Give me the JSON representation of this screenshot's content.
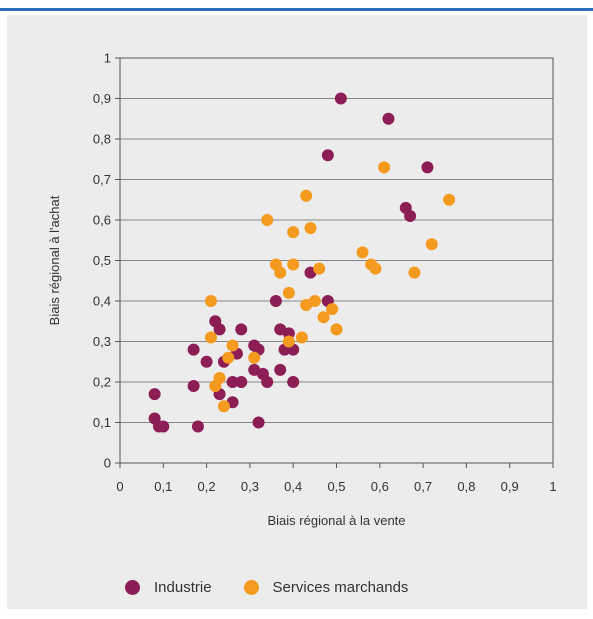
{
  "colors": {
    "accent_bar": "#2a6ebb",
    "panel_background": "#ececec",
    "industrie": "#8c1d55",
    "services": "#f39a1f"
  },
  "legend": {
    "industrie": "Industrie",
    "services": "Services marchands"
  },
  "chart_data": {
    "type": "scatter",
    "title": "",
    "xlabel": "Biais régional à la vente",
    "ylabel": "Biais régional à l'achat",
    "xlim": [
      0,
      1
    ],
    "ylim": [
      0,
      1
    ],
    "x_ticks": [
      "0",
      "0,1",
      "0,2",
      "0,3",
      "0,4",
      "0,5",
      "0,6",
      "0,7",
      "0,8",
      "0,9",
      "1"
    ],
    "y_ticks": [
      "0",
      "0,1",
      "0,2",
      "0,3",
      "0,4",
      "0,5",
      "0,6",
      "0,7",
      "0,8",
      "0,9",
      "1"
    ],
    "grid": "horizontal",
    "legend_position": "bottom",
    "series": [
      {
        "name": "Industrie",
        "color": "#8c1d55",
        "points": [
          [
            0.08,
            0.17
          ],
          [
            0.08,
            0.11
          ],
          [
            0.09,
            0.09
          ],
          [
            0.1,
            0.09
          ],
          [
            0.17,
            0.28
          ],
          [
            0.17,
            0.19
          ],
          [
            0.18,
            0.09
          ],
          [
            0.2,
            0.25
          ],
          [
            0.22,
            0.35
          ],
          [
            0.23,
            0.33
          ],
          [
            0.23,
            0.17
          ],
          [
            0.24,
            0.25
          ],
          [
            0.26,
            0.2
          ],
          [
            0.26,
            0.15
          ],
          [
            0.27,
            0.27
          ],
          [
            0.28,
            0.33
          ],
          [
            0.28,
            0.2
          ],
          [
            0.31,
            0.29
          ],
          [
            0.31,
            0.23
          ],
          [
            0.32,
            0.28
          ],
          [
            0.32,
            0.1
          ],
          [
            0.33,
            0.22
          ],
          [
            0.34,
            0.2
          ],
          [
            0.36,
            0.4
          ],
          [
            0.37,
            0.33
          ],
          [
            0.37,
            0.23
          ],
          [
            0.38,
            0.28
          ],
          [
            0.39,
            0.32
          ],
          [
            0.4,
            0.28
          ],
          [
            0.4,
            0.2
          ],
          [
            0.44,
            0.47
          ],
          [
            0.48,
            0.76
          ],
          [
            0.48,
            0.4
          ],
          [
            0.51,
            0.9
          ],
          [
            0.62,
            0.85
          ],
          [
            0.66,
            0.63
          ],
          [
            0.67,
            0.61
          ],
          [
            0.71,
            0.73
          ]
        ]
      },
      {
        "name": "Services marchands",
        "color": "#f39a1f",
        "points": [
          [
            0.21,
            0.4
          ],
          [
            0.21,
            0.31
          ],
          [
            0.22,
            0.19
          ],
          [
            0.23,
            0.21
          ],
          [
            0.24,
            0.14
          ],
          [
            0.25,
            0.26
          ],
          [
            0.26,
            0.29
          ],
          [
            0.31,
            0.26
          ],
          [
            0.34,
            0.6
          ],
          [
            0.36,
            0.49
          ],
          [
            0.37,
            0.47
          ],
          [
            0.39,
            0.42
          ],
          [
            0.39,
            0.3
          ],
          [
            0.4,
            0.57
          ],
          [
            0.4,
            0.49
          ],
          [
            0.42,
            0.31
          ],
          [
            0.43,
            0.66
          ],
          [
            0.43,
            0.39
          ],
          [
            0.44,
            0.58
          ],
          [
            0.45,
            0.4
          ],
          [
            0.46,
            0.48
          ],
          [
            0.47,
            0.36
          ],
          [
            0.49,
            0.38
          ],
          [
            0.5,
            0.33
          ],
          [
            0.56,
            0.52
          ],
          [
            0.58,
            0.49
          ],
          [
            0.59,
            0.48
          ],
          [
            0.61,
            0.73
          ],
          [
            0.68,
            0.47
          ],
          [
            0.72,
            0.54
          ],
          [
            0.76,
            0.65
          ]
        ]
      }
    ]
  }
}
